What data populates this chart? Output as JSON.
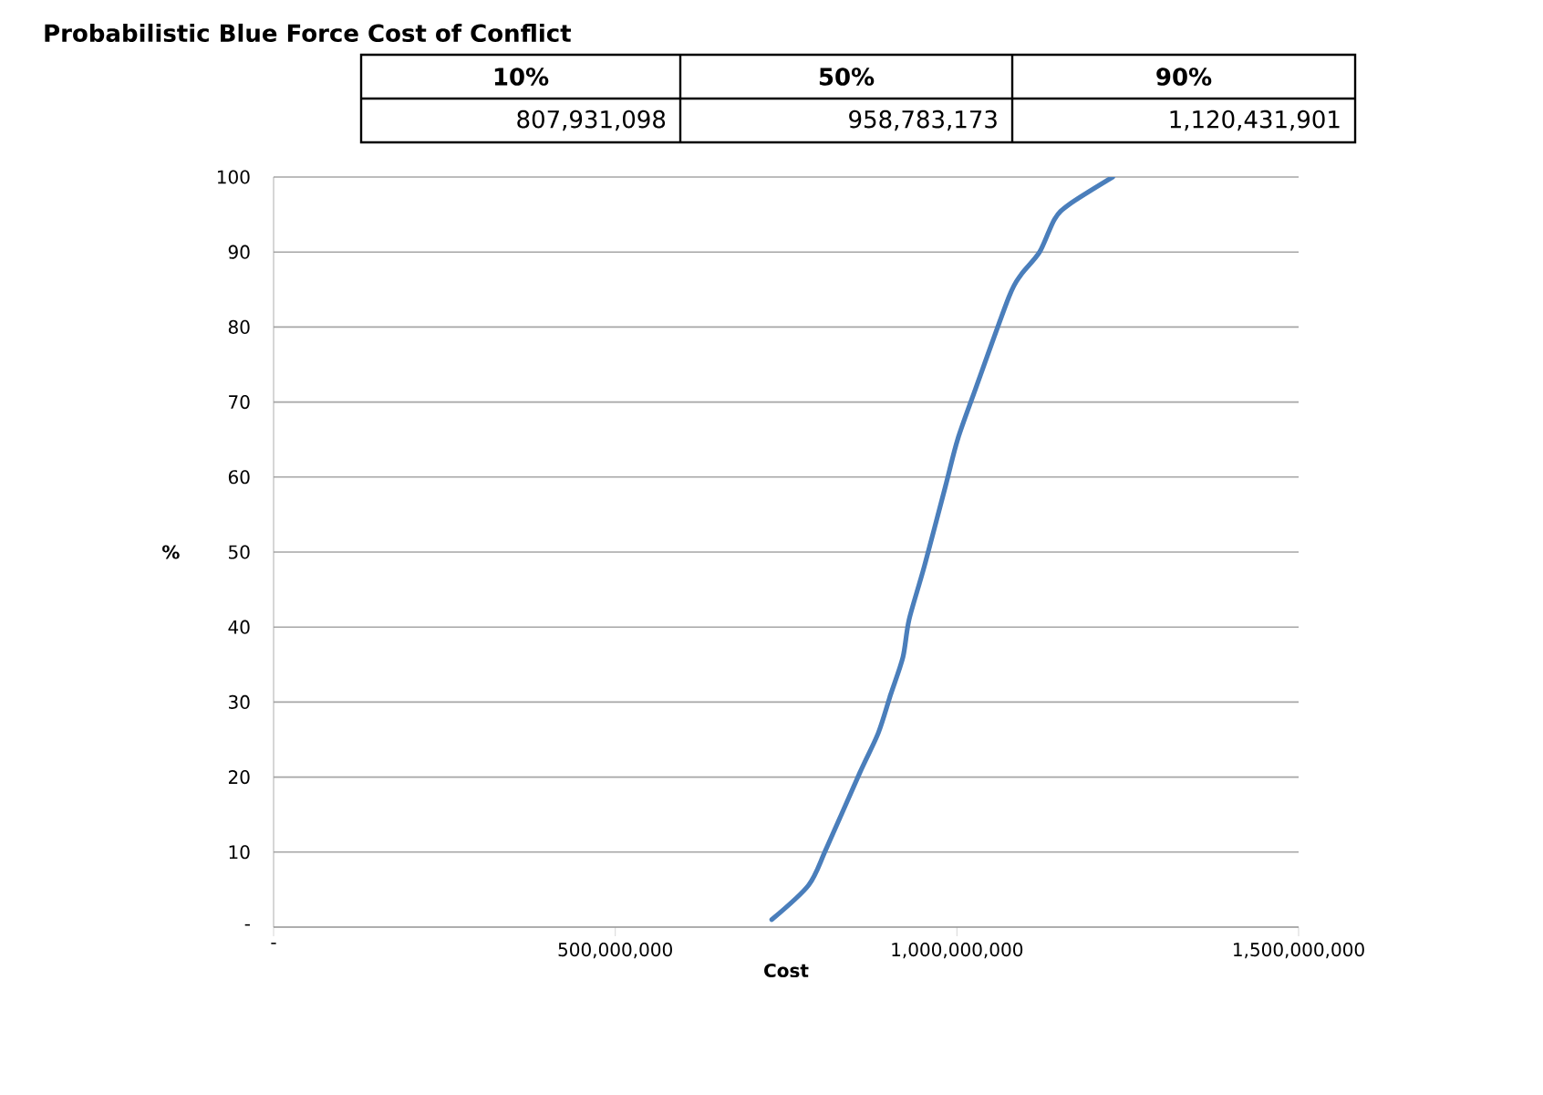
{
  "chart_data": {
    "type": "line",
    "title": "Probabilistic Blue Force Cost of Conflict",
    "xlabel": "Cost",
    "ylabel": "%",
    "annotations": [
      "10%",
      "50%",
      "90%",
      "807,931,098",
      "958,783,173",
      "1,120,431,901"
    ],
    "x": [
      729000000,
      783000000,
      809000000,
      858000000,
      885000000,
      903000000,
      921000000,
      930000000,
      952000000,
      983000000,
      1001000000,
      1027000000,
      1076000000,
      1094000000,
      1121000000,
      1143000000,
      1165000000,
      1228000000
    ],
    "series": [
      {
        "color": "#4a7ebb",
        "values": [
          1,
          5.6,
          10.5,
          20.6,
          25.9,
          31,
          36,
          41,
          48,
          58.7,
          65,
          71.7,
          84,
          87,
          90,
          94.4,
          96.4,
          100
        ]
      }
    ],
    "xlim": [
      0,
      1500000000
    ],
    "xticks": [
      {
        "value": 0,
        "label": "-"
      },
      {
        "value": 500000000,
        "label": "500,000,000"
      },
      {
        "value": 1000000000,
        "label": "1,000,000,000"
      },
      {
        "value": 1500000000,
        "label": "1,500,000,000"
      }
    ],
    "ylim": [
      0,
      100
    ],
    "yticks": [
      {
        "value": 0,
        "label": "-"
      },
      10,
      20,
      30,
      40,
      50,
      60,
      70,
      80,
      90,
      100
    ],
    "grid": "y",
    "marker": "none",
    "line_style": "solid"
  }
}
